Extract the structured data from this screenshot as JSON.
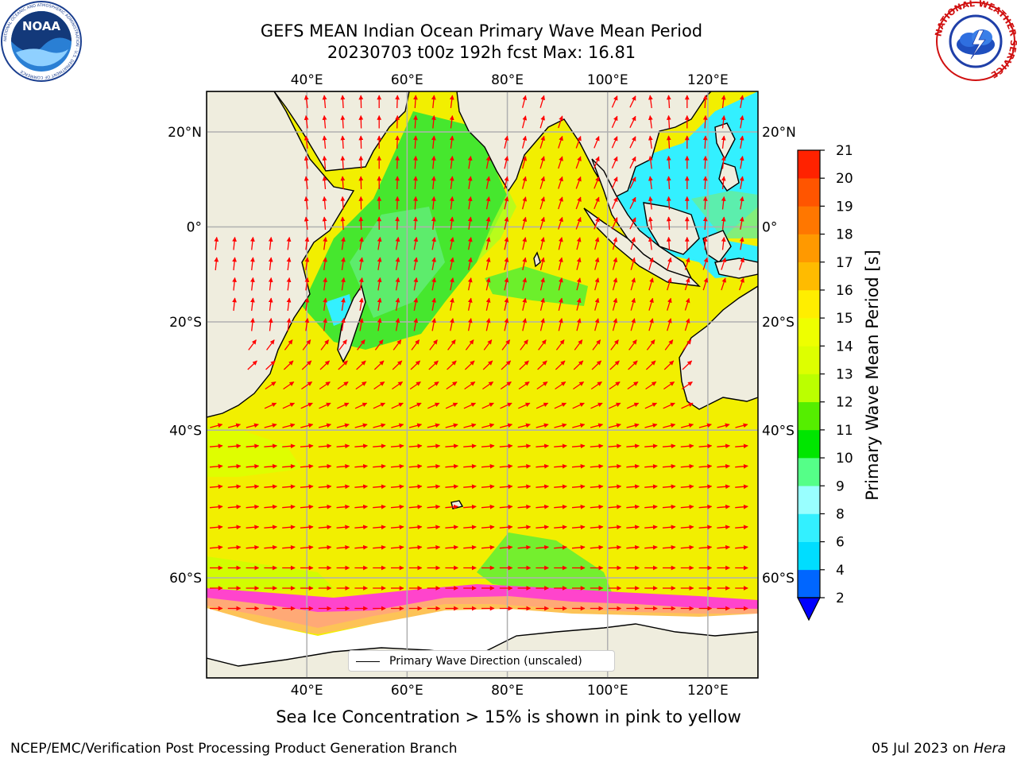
{
  "title": {
    "line1": "GEFS MEAN Indian Ocean Primary Wave Mean Period",
    "line2": "20230703 t00z 192h fcst   Max: 16.81"
  },
  "logos": {
    "noaa_text": "NOAA",
    "nws_text": "NATIONAL WEATHER SERVICE",
    "noaa_ring_text": "NATIONAL OCEANIC AND ATMOSPHERIC ADMINISTRATION · U.S. DEPARTMENT OF COMMERCE"
  },
  "map": {
    "lon_range": [
      20,
      130
    ],
    "lat_range": [
      -70,
      28
    ],
    "lon_ticks": [
      {
        "v": 40,
        "label": "40°E"
      },
      {
        "v": 60,
        "label": "60°E"
      },
      {
        "v": 80,
        "label": "80°E"
      },
      {
        "v": 100,
        "label": "100°E"
      },
      {
        "v": 120,
        "label": "120°E"
      }
    ],
    "lat_ticks": [
      {
        "v": 20,
        "label": "20°N"
      },
      {
        "v": 0,
        "label": "0°"
      },
      {
        "v": -20,
        "label": "20°S"
      },
      {
        "v": -40,
        "label": "40°S"
      },
      {
        "v": -60,
        "label": "60°S"
      }
    ],
    "land_color": "#efedde",
    "ocean_color": "#f2ef00",
    "arrow_color": "#ff0000"
  },
  "legend": {
    "label": "Primary Wave Direction (unscaled)"
  },
  "colorbar": {
    "label": "Primary Wave Mean Period [s]",
    "ticks": [
      "2",
      "4",
      "6",
      "8",
      "9",
      "10",
      "11",
      "12",
      "13",
      "14",
      "15",
      "16",
      "17",
      "18",
      "19",
      "20",
      "21"
    ],
    "colors": [
      "#0066ff",
      "#00ddff",
      "#33f0ff",
      "#99ffff",
      "#55ff88",
      "#00e600",
      "#55ee00",
      "#bbff00",
      "#ddff00",
      "#eeff00",
      "#ffee00",
      "#ffbb00",
      "#ff9900",
      "#ff7700",
      "#ff5500",
      "#ff2200"
    ],
    "under_color": "#0000ff"
  },
  "note": "Sea Ice Concentration > 15% is shown in pink to yellow",
  "footer": {
    "left": "NCEP/EMC/Verification Post Processing Product Generation Branch",
    "right_date": "05 Jul 2023 on ",
    "right_host": "Hera"
  }
}
